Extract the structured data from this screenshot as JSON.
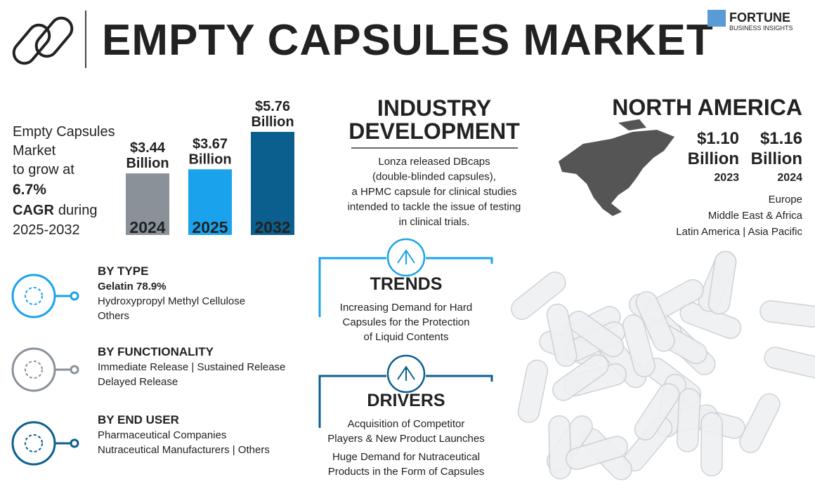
{
  "header": {
    "title": "EMPTY CAPSULES MARKET",
    "logo_name": "FORTUNE",
    "logo_tagline": "BUSINESS INSIGHTS"
  },
  "growth": {
    "lines": [
      "Empty Capsules",
      "Market",
      "to grow at"
    ],
    "cagr": "6.7%",
    "cagr_label": "CAGR",
    "cagr_suffix": "during",
    "period": "2025-2032"
  },
  "market_chart": {
    "type": "bar",
    "categories": [
      "2024",
      "2025",
      "2032"
    ],
    "values": [
      3.44,
      3.67,
      5.76
    ],
    "value_labels": [
      "$3.44",
      "$3.67",
      "$5.76"
    ],
    "unit": "Billion",
    "colors": [
      "#8a9199",
      "#1aa3ec",
      "#0b5f8f"
    ]
  },
  "industry_development": {
    "title_lines": [
      "INDUSTRY",
      "DEVELOPMENT"
    ],
    "text_lines": [
      "Lonza released DBcaps",
      "(double-blinded capsules),",
      "a HPMC capsule for clinical studies",
      "intended to tackle the issue of testing",
      "in clinical trials."
    ]
  },
  "north_america": {
    "title": "NORTH AMERICA",
    "values": [
      {
        "amount": "$1.10",
        "unit": "Billion",
        "year": "2023"
      },
      {
        "amount": "$1.16",
        "unit": "Billion",
        "year": "2024"
      }
    ],
    "regions": [
      "Europe",
      "Middle East & Africa",
      "Latin America  |  Asia Pacific"
    ]
  },
  "segments": [
    {
      "title": "BY TYPE",
      "highlight": "Gelatin 78.9%",
      "lines": [
        "Hydroxypropyl Methyl Cellulose",
        "Others"
      ]
    },
    {
      "title": "BY FUNCTIONALITY",
      "lines": [
        "Immediate Release  |  Sustained Release",
        "Delayed Release"
      ]
    },
    {
      "title": "BY END USER",
      "lines": [
        "Pharmaceutical Companies",
        "Nutraceutical Manufacturers  |  Others"
      ]
    }
  ],
  "trends": {
    "title": "TRENDS",
    "lines": [
      "Increasing Demand for Hard",
      "Capsules for the Protection",
      "of Liquid Contents"
    ]
  },
  "drivers": {
    "title": "DRIVERS",
    "lines": [
      "Acquisition of Competitor",
      "Players & New Product Launches",
      "Huge Demand for Nutraceutical",
      "Products in the Form of Capsules"
    ]
  }
}
